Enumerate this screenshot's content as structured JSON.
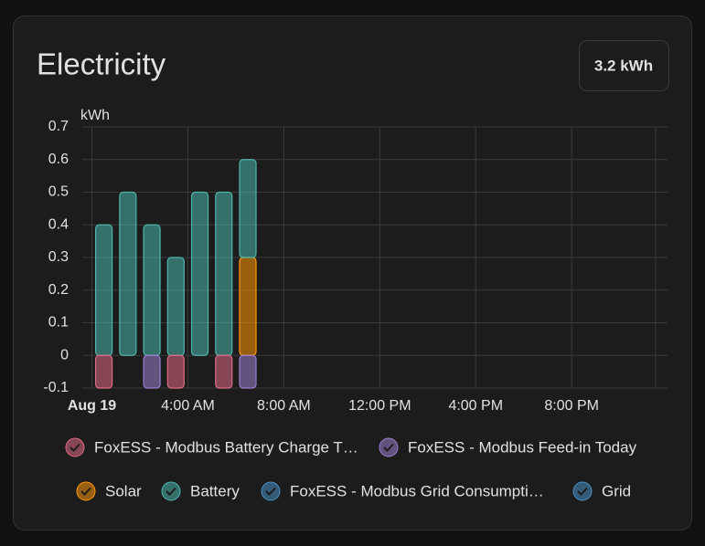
{
  "chart_data": {
    "type": "stacked_bar",
    "title": "Electricity",
    "total": "3.2 kWh",
    "y_label": "kWh",
    "x": [
      0,
      1,
      2,
      3,
      4,
      5,
      6
    ],
    "xlim": [
      -0.4,
      23.5
    ],
    "xticks": [
      {
        "value": 0,
        "label": "Aug 19"
      },
      {
        "value": 4,
        "label": "4:00 AM"
      },
      {
        "value": 8,
        "label": "8:00 AM"
      },
      {
        "value": 12,
        "label": "12:00 PM"
      },
      {
        "value": 16,
        "label": "4:00 PM"
      },
      {
        "value": 20,
        "label": "8:00 PM"
      }
    ],
    "ylim": [
      -0.1,
      0.7
    ],
    "yticks": [
      -0.1,
      0,
      0.1,
      0.2,
      0.3,
      0.4,
      0.5,
      0.6,
      0.7
    ],
    "grid": true,
    "series": [
      {
        "name": "FoxESS - Modbus Battery Charge T…",
        "color": "#e06a85",
        "values": [
          -0.1,
          0,
          0,
          -0.1,
          0,
          -0.1,
          0
        ]
      },
      {
        "name": "FoxESS - Modbus Feed-in Today",
        "color": "#9b7fd0",
        "values": [
          0,
          0,
          -0.1,
          0,
          0,
          0,
          -0.1
        ]
      },
      {
        "name": "Solar",
        "color": "#ff9800",
        "values": [
          0,
          0,
          0,
          0,
          0,
          0,
          0.3
        ]
      },
      {
        "name": "Battery",
        "color": "#4db6ac",
        "values": [
          0.4,
          0.5,
          0.4,
          0.3,
          0.5,
          0.5,
          0.3
        ]
      },
      {
        "name": "FoxESS - Modbus Grid Consumpti…",
        "color": "#488fc2",
        "values": [
          0,
          0,
          0,
          0,
          0,
          0,
          0
        ]
      },
      {
        "name": "Grid",
        "color": "#488fc2",
        "values": [
          0,
          0,
          0,
          0,
          0,
          0,
          0
        ]
      }
    ]
  }
}
